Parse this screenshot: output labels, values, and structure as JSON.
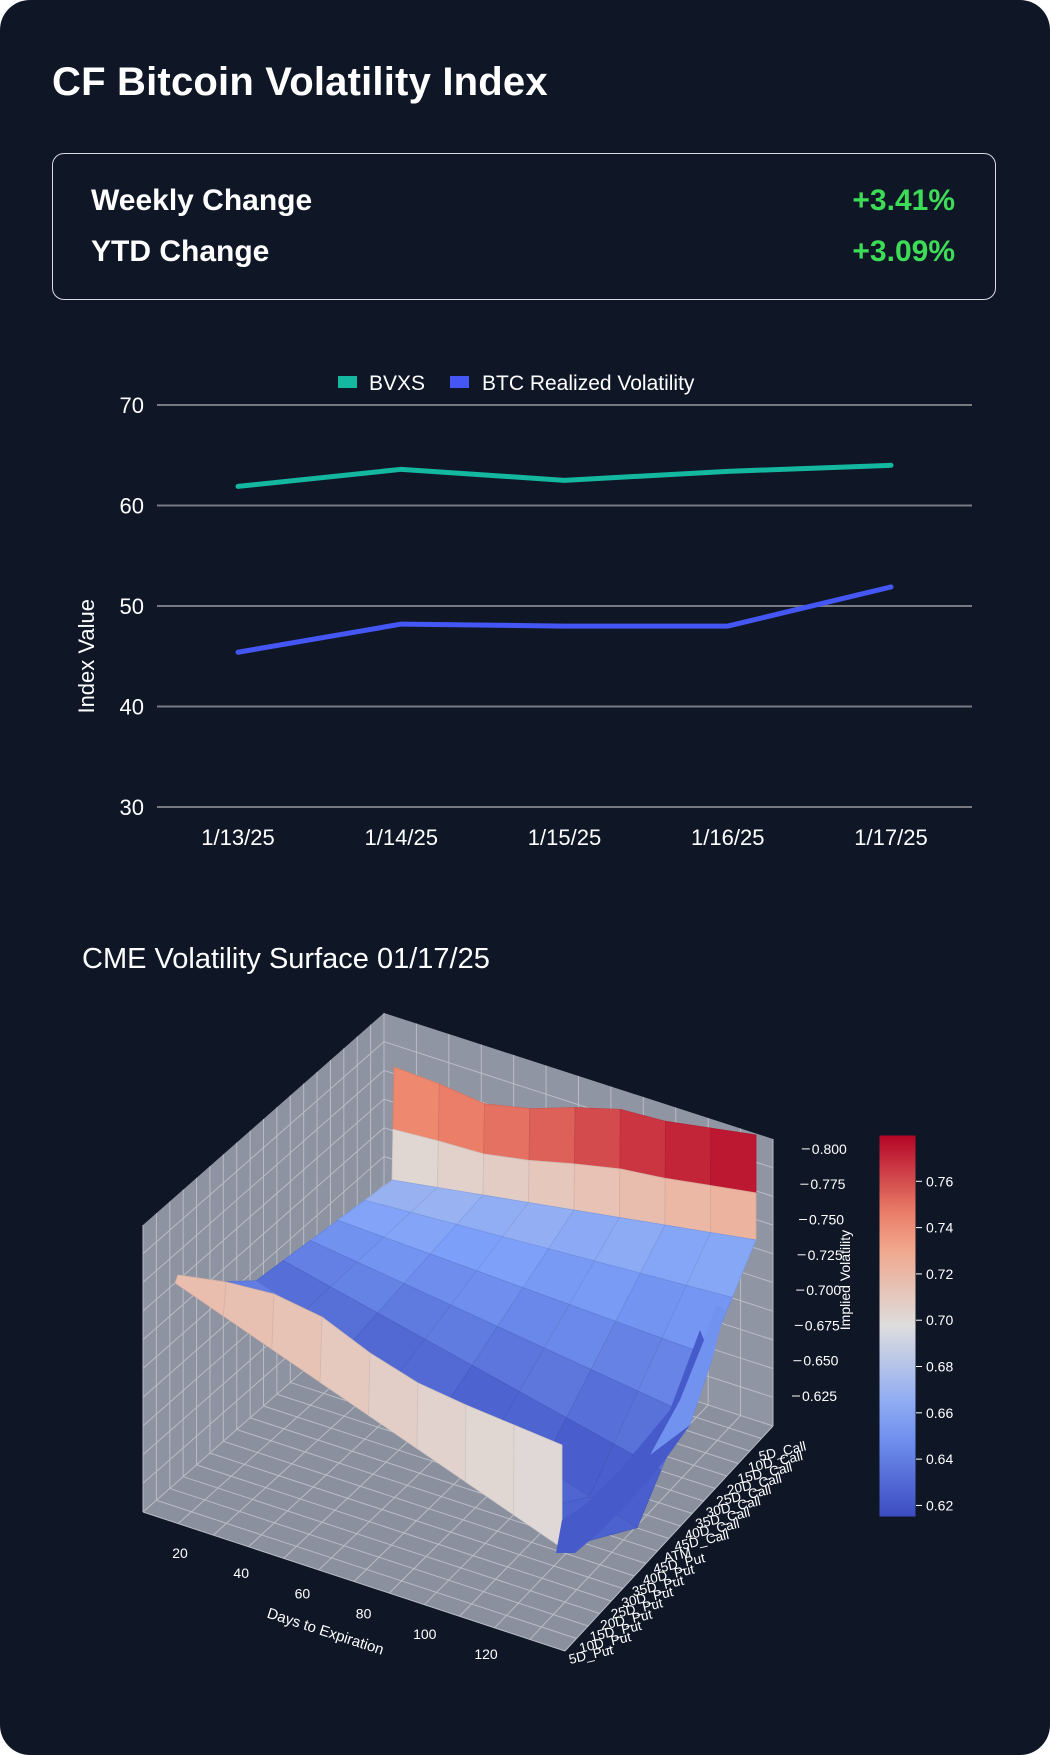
{
  "header": {
    "title": "CF Bitcoin Volatility Index"
  },
  "stats": [
    {
      "label": "Weekly Change",
      "value": "+3.41%"
    },
    {
      "label": "YTD Change",
      "value": "+3.09%"
    }
  ],
  "colors": {
    "positive": "#3ddc57",
    "bvxs": "#14b8a0",
    "realized": "#4457f5",
    "grid": "#777a80",
    "text": "#ffffff"
  },
  "chart_data": [
    {
      "type": "line",
      "title": "",
      "categories": [
        "1/13/25",
        "1/14/25",
        "1/15/25",
        "1/16/25",
        "1/17/25"
      ],
      "series": [
        {
          "name": "BVXS",
          "values": [
            61.9,
            63.6,
            62.5,
            63.4,
            64.0
          ]
        },
        {
          "name": "BTC Realized Volatility",
          "values": [
            45.4,
            48.2,
            48.0,
            48.0,
            51.9
          ]
        }
      ],
      "xlabel": "",
      "ylabel": "Index Value",
      "ylim": [
        30,
        70
      ],
      "yticks": [
        "30",
        "40",
        "50",
        "60",
        "70"
      ],
      "grid": true,
      "legend": "top-center"
    },
    {
      "type": "surface",
      "title": "CME Volatility Surface 01/17/25",
      "xlabel": "Days to Expiration",
      "ylabel": "",
      "zlabel": "Implied Volatility",
      "xticks": [
        "20",
        "40",
        "60",
        "80",
        "100",
        "120"
      ],
      "yticks": [
        "5D_Call",
        "10D_Call",
        "15D_Call",
        "20D_Call",
        "25D_Call",
        "30D_Call",
        "35D_Call",
        "40D_Call",
        "45D_Call",
        "ATM",
        "45D_Put",
        "40D_Put",
        "35D_Put",
        "30D_Put",
        "25D_Put",
        "20D_Put",
        "15D_Put",
        "10D_Put",
        "5D_Put"
      ],
      "zticks": [
        "0.625",
        "0.650",
        "0.675",
        "0.700",
        "0.725",
        "0.750",
        "0.775",
        "0.800"
      ],
      "colorbar_ticks": [
        "0.62",
        "0.64",
        "0.66",
        "0.68",
        "0.70",
        "0.72",
        "0.74",
        "0.76"
      ],
      "colorbar_range": [
        0.615,
        0.78
      ],
      "colormap": "coolwarm",
      "front_edge_values": [
        0.717,
        0.716,
        0.715,
        0.712,
        0.708,
        0.705,
        0.703,
        0.701,
        0.7
      ],
      "back_edge_values": [
        0.742,
        0.745,
        0.748,
        0.752,
        0.757,
        0.764,
        0.769,
        0.773,
        0.776
      ]
    }
  ]
}
